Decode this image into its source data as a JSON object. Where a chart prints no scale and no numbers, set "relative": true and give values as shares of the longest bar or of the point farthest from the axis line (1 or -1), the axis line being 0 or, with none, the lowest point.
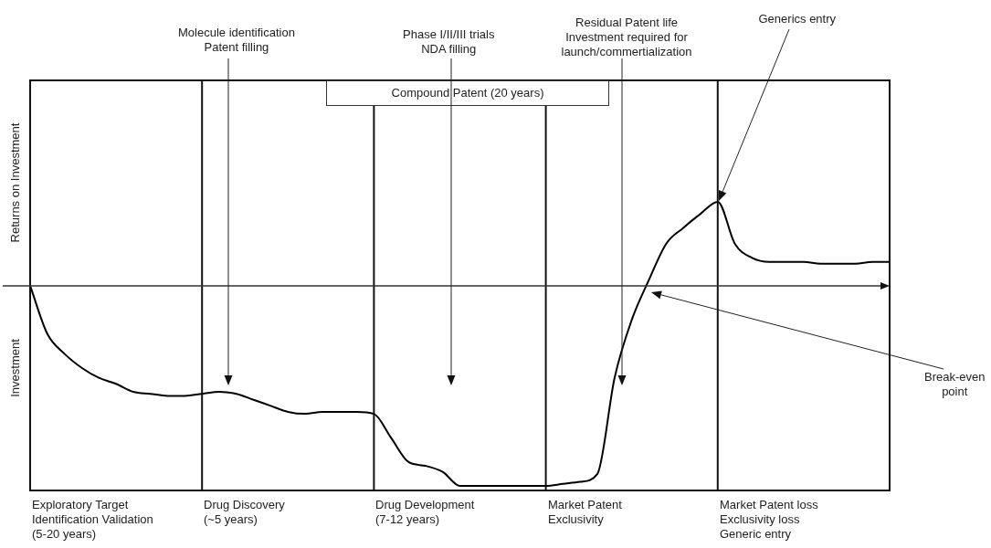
{
  "chart_data": {
    "type": "line",
    "relative": true,
    "marker": "none",
    "line_style": "solid",
    "categories": [
      null,
      null,
      null,
      null,
      null,
      null,
      null,
      null,
      null,
      null,
      null,
      null,
      null,
      null,
      null,
      null,
      null,
      null,
      null,
      null,
      null,
      null,
      null,
      null,
      null,
      null,
      null,
      null,
      null,
      null,
      null,
      null,
      null,
      null,
      null,
      null,
      null,
      null,
      null,
      null,
      null,
      null,
      null,
      null,
      null,
      null,
      null,
      null,
      null,
      null,
      null
    ],
    "series": [
      {
        "color": "#000000",
        "values": [
          0,
          -0.24,
          -0.34,
          -0.41,
          -0.46,
          -0.49,
          -0.53,
          -0.54,
          -0.55,
          -0.55,
          -0.54,
          -0.53,
          -0.54,
          -0.57,
          -0.6,
          -0.63,
          -0.64,
          -0.63,
          -0.63,
          -0.63,
          -0.64,
          -0.76,
          -0.88,
          -0.9,
          -0.93,
          -1,
          -1,
          -1,
          -1,
          -1,
          -1,
          -0.99,
          -0.98,
          -0.94,
          -0.46,
          -0.17,
          0.03,
          0.21,
          0.29,
          0.36,
          0.42,
          0.21,
          0.14,
          0.12,
          0.12,
          0.12,
          0.11,
          0.11,
          0.11,
          0.12,
          0.12
        ]
      }
    ],
    "grid": "x",
    "annotations": [
      "Molecule identification\nPatent filling",
      "Phase I/II/III trials\nNDA filling",
      "Residual Patent life\nInvestment required for\nlaunch/commertialization",
      "Generics entry",
      "Compound Patent (20 years)",
      "Break-even\npoint",
      "Returns on Investment",
      "Investment",
      "Exploratory Target\nIdentification Validation\n(5-20 years)",
      "Drug Discovery\n(~5 years)",
      "Drug Development\n(7-12 years)",
      "Market Patent\nExclusivity",
      "Market Patent loss\nExclusivity loss\nGeneric entry"
    ]
  }
}
